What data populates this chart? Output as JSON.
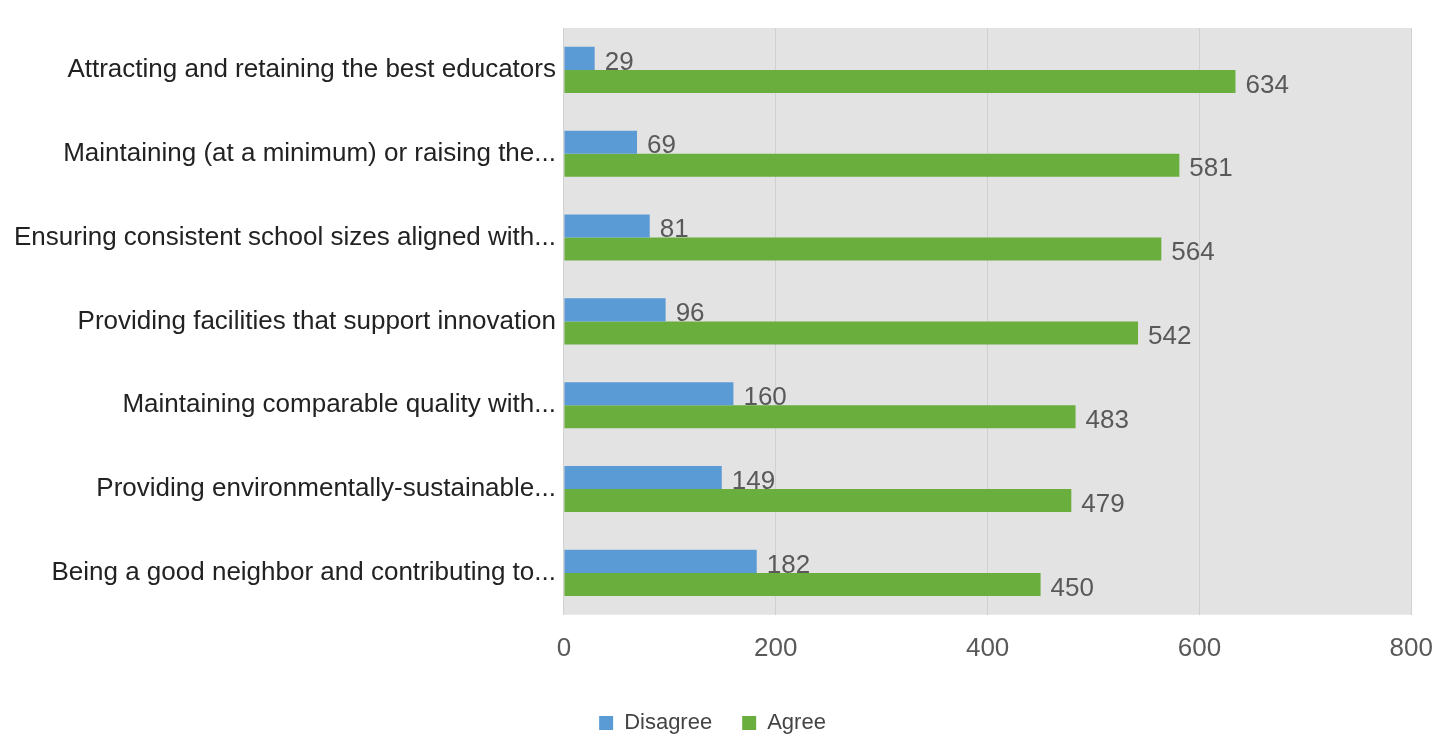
{
  "chart_data": {
    "type": "bar",
    "orientation": "horizontal",
    "categories": [
      "Attracting and retaining the best educators",
      "Maintaining (at a minimum) or raising the...",
      "Ensuring consistent school sizes aligned with...",
      "Providing facilities that support innovation",
      "Maintaining comparable quality with...",
      "Providing environmentally-sustainable...",
      "Being a good neighbor and contributing to..."
    ],
    "series": [
      {
        "name": "Disagree",
        "color": "#5b9bd5",
        "values": [
          29,
          69,
          81,
          96,
          160,
          149,
          182
        ]
      },
      {
        "name": "Agree",
        "color": "#6aae3e",
        "values": [
          634,
          581,
          564,
          542,
          483,
          479,
          450
        ]
      }
    ],
    "xlim": [
      0,
      800
    ],
    "xticks": [
      0,
      200,
      400,
      600,
      800
    ],
    "grid": "x",
    "legend": "bottom",
    "data_labels": true
  }
}
